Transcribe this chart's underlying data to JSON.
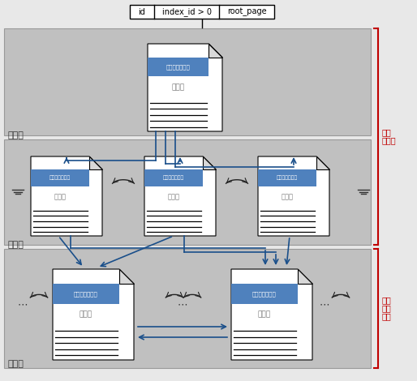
{
  "bg_color": "#c8c8c8",
  "white": "#ffffff",
  "blue_header": "#4f81bd",
  "dark_blue": "#1f3864",
  "text_color": "#000000",
  "red_bracket": "#c00000",
  "root_label": "根节点",
  "leaf_label": "叶节点",
  "data_label": "数据页",
  "index_row_text": "索引行",
  "data_row_text": "数据行",
  "page_header_text": "上一页｜下一页",
  "right_label1": "非聚集",
  "right_label2": "索引",
  "right_label3": "堆或",
  "right_label4": "聚集",
  "right_label5": "索引",
  "table_cols": [
    "id",
    "index_id > 0",
    "root_page"
  ],
  "figsize": [
    5.14,
    4.7
  ],
  "dpi": 100,
  "blue_arrow": "#1a4f8a",
  "band_color": "#c0c0c0",
  "band_edge": "#999999",
  "fold_color": "#d8d8d8"
}
